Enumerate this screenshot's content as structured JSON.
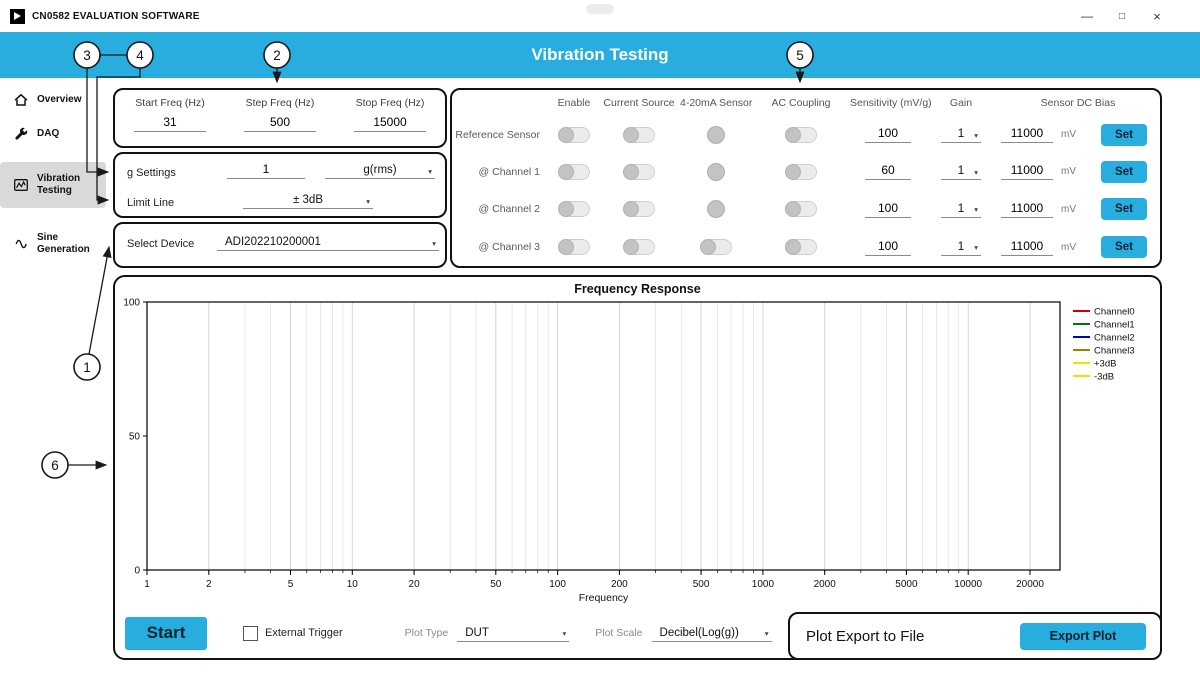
{
  "window": {
    "title": "CN0582 EVALUATION SOFTWARE",
    "controls": {
      "minimize": "—",
      "maximize": "□",
      "close": "×"
    }
  },
  "header": {
    "title": "Vibration Testing",
    "accent_color": "#27aede"
  },
  "sidebar": {
    "items": [
      {
        "label": "Overview",
        "icon": "home-icon",
        "active": false
      },
      {
        "label": "DAQ",
        "icon": "wrench-icon",
        "active": false
      },
      {
        "label": "Vibration Testing",
        "icon": "chart-icon",
        "active": true
      },
      {
        "label": "Sine Generation",
        "icon": "sine-icon",
        "active": false
      }
    ]
  },
  "freq_panel": {
    "fields": [
      {
        "label": "Start Freq (Hz)",
        "value": "31"
      },
      {
        "label": "Step Freq (Hz)",
        "value": "500"
      },
      {
        "label": "Stop Freq (Hz)",
        "value": "15000"
      }
    ]
  },
  "settings_panel": {
    "g_settings": {
      "label": "g Settings",
      "value": "1",
      "unit": "g(rms)"
    },
    "limit_line": {
      "label": "Limit Line",
      "value": "± 3dB"
    },
    "select_device": {
      "label": "Select Device",
      "value": "ADI202210200001"
    }
  },
  "channel_panel": {
    "columns": [
      "Enable",
      "Current Source",
      "4-20mA Sensor",
      "AC Coupling",
      "Sensitivity (mV/g)",
      "Gain",
      "Sensor DC Bias"
    ],
    "rows": [
      {
        "label": "Reference Sensor",
        "enable": false,
        "current_source": false,
        "sensor_420_style": "circle",
        "ac_coupling": false,
        "sensitivity": "100",
        "gain": "1",
        "bias": "11000",
        "bias_unit": "mV",
        "set_label": "Set"
      },
      {
        "label": "@ Channel 1",
        "enable": false,
        "current_source": false,
        "sensor_420_style": "circle",
        "ac_coupling": false,
        "sensitivity": "60",
        "gain": "1",
        "bias": "11000",
        "bias_unit": "mV",
        "set_label": "Set"
      },
      {
        "label": "@ Channel 2",
        "enable": false,
        "current_source": false,
        "sensor_420_style": "circle",
        "ac_coupling": false,
        "sensitivity": "100",
        "gain": "1",
        "bias": "11000",
        "bias_unit": "mV",
        "set_label": "Set"
      },
      {
        "label": "@ Channel 3",
        "enable": false,
        "current_source": false,
        "sensor_420_style": "toggle",
        "ac_coupling": false,
        "sensitivity": "100",
        "gain": "1",
        "bias": "11000",
        "bias_unit": "mV",
        "set_label": "Set"
      }
    ]
  },
  "chart_data": {
    "type": "line",
    "title": "Frequency Response",
    "xlabel": "Frequency",
    "ylabel": "",
    "x_scale": "log",
    "xlim": [
      1,
      28000
    ],
    "ylim": [
      0,
      100
    ],
    "x_ticks": [
      1,
      2,
      5,
      10,
      20,
      50,
      100,
      200,
      500,
      1000,
      2000,
      5000,
      10000,
      20000
    ],
    "y_ticks": [
      0,
      50,
      100
    ],
    "grid": true,
    "legend_position": "right",
    "series": [
      {
        "name": "Channel0",
        "color": "#d40000",
        "values": []
      },
      {
        "name": "Channel1",
        "color": "#0b6e0b",
        "values": []
      },
      {
        "name": "Channel2",
        "color": "#0000c8",
        "values": []
      },
      {
        "name": "Channel3",
        "color": "#a97a00",
        "values": []
      },
      {
        "name": "+3dB",
        "color": "#f0e000",
        "values": []
      },
      {
        "name": "-3dB",
        "color": "#f0e000",
        "values": []
      }
    ]
  },
  "bottom_bar": {
    "start_label": "Start",
    "external_trigger_label": "External Trigger",
    "plot_type_label": "Plot Type",
    "plot_type_value": "DUT",
    "plot_scale_label": "Plot Scale",
    "plot_scale_value": "Decibel(Log(g))",
    "export": {
      "title": "Plot Export to File",
      "button_label": "Export Plot"
    }
  },
  "callouts": [
    "1",
    "2",
    "3",
    "4",
    "5",
    "6"
  ]
}
